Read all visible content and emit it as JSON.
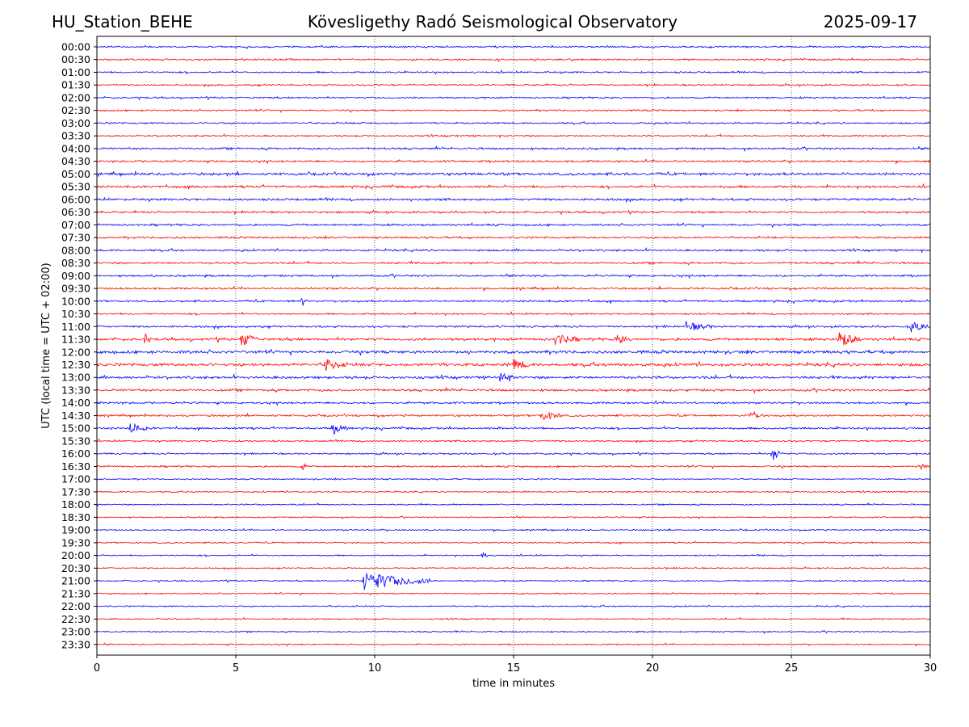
{
  "header": {
    "station": "HU_Station_BEHE",
    "title": "Kövesligethy Radó Seismological Observatory",
    "date": "2025-09-17"
  },
  "chart_data": {
    "type": "line",
    "subtype": "helicorder",
    "xlabel": "time in minutes",
    "ylabel": "UTC (local time = UTC + 02:00)",
    "xlim": [
      0,
      30
    ],
    "x_ticks": [
      0,
      5,
      10,
      15,
      20,
      25,
      30
    ],
    "x_gridlines": [
      5,
      10,
      15,
      20,
      25
    ],
    "grid": "vertical dotted",
    "trace_colors": [
      "#0000ff",
      "#ff0000"
    ],
    "rows": [
      "00:00",
      "00:30",
      "01:00",
      "01:30",
      "02:00",
      "02:30",
      "03:00",
      "03:30",
      "04:00",
      "04:30",
      "05:00",
      "05:30",
      "06:00",
      "06:30",
      "07:00",
      "07:30",
      "08:00",
      "08:30",
      "09:00",
      "09:30",
      "10:00",
      "10:30",
      "11:00",
      "11:30",
      "12:00",
      "12:30",
      "13:00",
      "13:30",
      "14:00",
      "14:30",
      "15:00",
      "15:30",
      "16:00",
      "16:30",
      "17:00",
      "17:30",
      "18:00",
      "18:30",
      "19:00",
      "19:30",
      "20:00",
      "20:30",
      "21:00",
      "21:30",
      "22:00",
      "22:30",
      "23:00",
      "23:30"
    ],
    "row_noise_level": [
      0.5,
      0.5,
      0.5,
      0.5,
      0.5,
      0.5,
      0.5,
      0.5,
      0.6,
      0.6,
      0.8,
      0.7,
      0.7,
      0.6,
      0.6,
      0.6,
      0.6,
      0.6,
      0.6,
      0.6,
      0.6,
      0.5,
      0.6,
      0.8,
      0.9,
      0.9,
      0.8,
      0.7,
      0.6,
      0.6,
      0.6,
      0.5,
      0.5,
      0.5,
      0.4,
      0.4,
      0.4,
      0.4,
      0.4,
      0.4,
      0.4,
      0.4,
      0.4,
      0.4,
      0.4,
      0.4,
      0.4,
      0.4
    ],
    "events": [
      {
        "row": "10:00",
        "minute": 7.4,
        "amplitude": 1.0,
        "duration_min": 0.2
      },
      {
        "row": "11:00",
        "minute": 21.2,
        "amplitude": 0.8,
        "duration_min": 1.0
      },
      {
        "row": "11:00",
        "minute": 29.3,
        "amplitude": 0.9,
        "duration_min": 0.7
      },
      {
        "row": "11:30",
        "minute": 1.7,
        "amplitude": 1.6,
        "duration_min": 0.15
      },
      {
        "row": "11:30",
        "minute": 5.2,
        "amplitude": 1.4,
        "duration_min": 0.6
      },
      {
        "row": "11:30",
        "minute": 16.5,
        "amplitude": 1.0,
        "duration_min": 0.8
      },
      {
        "row": "11:30",
        "minute": 18.7,
        "amplitude": 0.9,
        "duration_min": 0.5
      },
      {
        "row": "11:30",
        "minute": 26.7,
        "amplitude": 1.4,
        "duration_min": 0.8
      },
      {
        "row": "12:30",
        "minute": 8.2,
        "amplitude": 1.0,
        "duration_min": 0.8
      },
      {
        "row": "12:30",
        "minute": 15.0,
        "amplitude": 0.9,
        "duration_min": 0.6
      },
      {
        "row": "13:00",
        "minute": 14.5,
        "amplitude": 1.0,
        "duration_min": 0.5
      },
      {
        "row": "14:30",
        "minute": 16.0,
        "amplitude": 0.9,
        "duration_min": 0.8
      },
      {
        "row": "14:30",
        "minute": 23.5,
        "amplitude": 1.0,
        "duration_min": 0.5
      },
      {
        "row": "15:00",
        "minute": 1.2,
        "amplitude": 1.0,
        "duration_min": 0.6
      },
      {
        "row": "15:00",
        "minute": 8.5,
        "amplitude": 1.1,
        "duration_min": 0.5
      },
      {
        "row": "16:00",
        "minute": 24.3,
        "amplitude": 1.3,
        "duration_min": 0.4
      },
      {
        "row": "16:30",
        "minute": 7.4,
        "amplitude": 1.2,
        "duration_min": 0.15
      },
      {
        "row": "16:30",
        "minute": 29.6,
        "amplitude": 0.8,
        "duration_min": 0.3
      },
      {
        "row": "20:00",
        "minute": 13.9,
        "amplitude": 1.0,
        "duration_min": 0.15
      },
      {
        "row": "21:00",
        "minute": 9.6,
        "amplitude": 1.7,
        "duration_min": 2.4
      }
    ]
  }
}
